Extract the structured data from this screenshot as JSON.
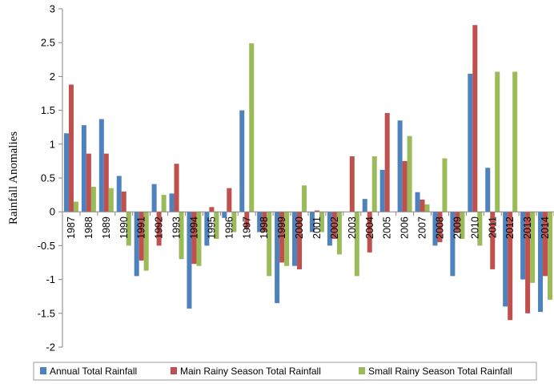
{
  "chart_data": {
    "type": "bar",
    "title": "",
    "xlabel": "",
    "ylabel": "Rainfall Anomalies",
    "ylim": [
      -2,
      3
    ],
    "yticks": [
      3,
      2.5,
      2,
      1.5,
      1,
      0.5,
      0,
      -0.5,
      -1,
      -1.5,
      -2
    ],
    "categories": [
      "1987",
      "1988",
      "1989",
      "1990",
      "1991",
      "1992",
      "1993",
      "1994",
      "1995",
      "1996",
      "1997",
      "1998",
      "1999",
      "2000",
      "2001",
      "2002",
      "2003",
      "2004",
      "2005",
      "2006",
      "2007",
      "2008",
      "2009",
      "2010",
      "2011",
      "2012",
      "2013",
      "2014"
    ],
    "series": [
      {
        "name": "Annual Total Rainfall",
        "color": "#4f81bd",
        "values": [
          1.16,
          1.28,
          1.37,
          0.53,
          -0.95,
          0.41,
          0.27,
          -1.43,
          -0.5,
          -0.09,
          1.5,
          -0.3,
          -1.35,
          -0.8,
          -0.3,
          -0.5,
          0.0,
          0.19,
          0.62,
          1.35,
          0.29,
          -0.5,
          -0.95,
          2.04,
          0.65,
          -1.4,
          -1.0,
          -1.48
        ]
      },
      {
        "name": "Main Rainy Season Total Rainfall",
        "color": "#c0504d",
        "values": [
          1.88,
          0.86,
          0.86,
          0.3,
          -0.72,
          -0.5,
          0.71,
          -0.77,
          0.07,
          0.35,
          -0.25,
          -0.3,
          -0.75,
          -0.85,
          0.02,
          -0.4,
          0.82,
          -0.6,
          1.46,
          0.75,
          0.18,
          -0.45,
          -0.3,
          2.76,
          -0.85,
          -1.6,
          -1.5,
          -0.95
        ]
      },
      {
        "name": "Small Rainy Season Total Rainfall",
        "color": "#9bbb59",
        "values": [
          0.15,
          0.37,
          0.35,
          -0.5,
          -0.87,
          0.25,
          -0.7,
          -0.8,
          -0.4,
          -0.3,
          2.49,
          -0.95,
          -0.8,
          0.39,
          -0.3,
          -0.63,
          -0.95,
          0.82,
          0.0,
          1.12,
          0.11,
          0.79,
          -0.4,
          -0.5,
          2.07,
          2.07,
          -1.05,
          -1.3
        ]
      }
    ],
    "grid": false,
    "legend_position": "bottom"
  }
}
